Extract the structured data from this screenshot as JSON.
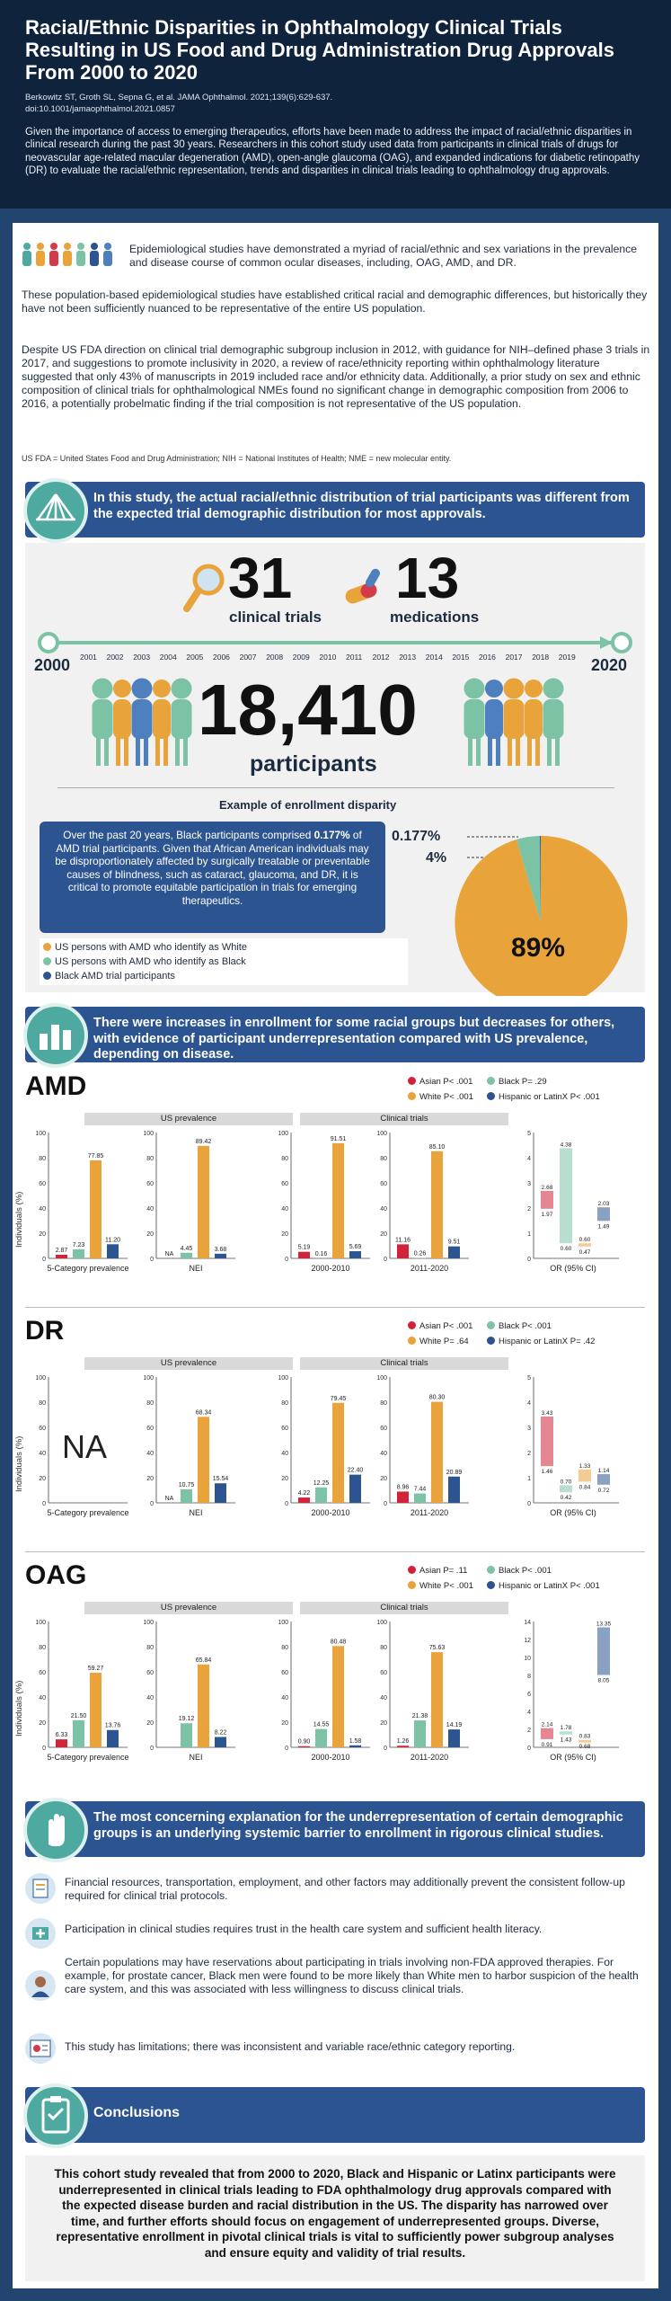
{
  "header": {
    "title": "Racial/Ethnic Disparities in Ophthalmology Clinical Trials Resulting in US Food and Drug Administration Drug Approvals From 2000 to 2020",
    "citation": "Berkowitz ST, Groth SL, Sepna G, et al. JAMA Ophthalmol. 2021;139(6):629-637.",
    "doi": "doi:10.1001/jamaophthalmol.2021.0857",
    "intro": "Given the importance of access to emerging therapeutics, efforts have been made to address the impact of racial/ethnic disparities in clinical research during the past 30 years. Researchers in this cohort study used data from participants in clinical trials of drugs for neovascular age-related macular degeneration (AMD), open-angle glaucoma (OAG), and expanded indications for diabetic retinopathy (DR) to evaluate the racial/ethnic representation, trends and disparities in clinical trials leading to ophthalmology drug approvals."
  },
  "background": {
    "p1": "Epidemiological studies have demonstrated a myriad of racial/ethnic and sex variations in the prevalence and disease course of common ocular diseases, including, OAG, AMD, and DR.",
    "p2": "These population-based epidemiological studies have established critical racial and demographic differences, but historically they have not been sufficiently nuanced to be representative of the entire US population.",
    "p3": "Despite US FDA direction on clinical trial demographic subgroup inclusion in 2012, with guidance for NIH–defined phase 3 trials in 2017, and suggestions to promote inclusivity in 2020, a review of race/ethnicity reporting within ophthalmology literature suggested that only 43% of manuscripts in 2019 included race and/or ethnicity data. Additionally, a prior study on sex and ethnic composition of clinical trials for ophthalmological NMEs found no significant change in demographic composition from 2006 to 2016, a potentially probelmatic finding if the trial composition is not representative of the US population.",
    "abbrev": "US FDA = United States Food and Drug Administration; NIH = National Institutes of Health; NME = new molecular entity."
  },
  "finding1": {
    "banner": "In this study, the actual racial/ethnic distribution of trial participants was different from the expected trial demographic distribution for most approvals.",
    "trials_num": "31",
    "trials_label": "clinical trials",
    "meds_num": "13",
    "meds_label": "medications",
    "start_year": "2000",
    "end_year": "2020",
    "years": [
      "2001",
      "2002",
      "2003",
      "2004",
      "2005",
      "2006",
      "2007",
      "2008",
      "2009",
      "2010",
      "2011",
      "2012",
      "2013",
      "2014",
      "2015",
      "2016",
      "2017",
      "2018",
      "2019"
    ],
    "participants_num": "18,410",
    "participants_label": "participants"
  },
  "enrollment": {
    "heading": "Example of enrollment disparity",
    "callout_pre": "Over the past 20 years, Black participants comprised ",
    "callout_bold": "0.177%",
    "callout_post": " of AMD trial participants. Given that African American individuals may be disproportionately affected by surgically treatable or preventable causes of blindness, such as cataract, glaucoma, and DR, it is critical to promote equitable participation in trials for emerging therapeutics.",
    "label_small": "0.177%",
    "label_4": "4%",
    "label_89": "89%",
    "legend": [
      "US persons with AMD who identify as White",
      "US persons with AMD who identify as Black",
      "Black AMD trial participants"
    ],
    "colors": {
      "white": "#e8a33a",
      "black": "#7cc3a6",
      "trial": "#2c5490"
    }
  },
  "finding2": {
    "banner": "There were increases in enrollment for some racial groups but decreases for others, with evidence of participant underrepresentation compared with US prevalence, depending on disease."
  },
  "panels": [
    {
      "name": "AMD",
      "legend": [
        "Asian P< .001",
        "Black P= .29",
        "White P< .001",
        "Hispanic or LatinX P< .001"
      ],
      "bars": [
        [
          "2.87",
          "7.23",
          "77.85",
          "11.20"
        ],
        [
          "NA",
          "4.45",
          "89.42",
          "3.68"
        ],
        [
          "5.19",
          "0.16",
          "91.51",
          "5.69"
        ],
        [
          "11.16",
          "0.26",
          "85.10",
          "9.51"
        ]
      ],
      "or": [
        "2.68",
        "1.97",
        "4.38",
        "0.60",
        "0.60",
        "0.47",
        "2.03",
        "1.49"
      ]
    },
    {
      "name": "DR",
      "legend": [
        "Asian P< .001",
        "Black P< .001",
        "White P= .64",
        "Hispanic or LatinX P= .42"
      ],
      "na": "NA",
      "bars": [
        [
          "",
          "",
          "",
          ""
        ],
        [
          "NA",
          "10.75",
          "68.34",
          "15.54"
        ],
        [
          "4.22",
          "12.25",
          "79.45",
          "22.40"
        ],
        [
          "8.96",
          "7.44",
          "80.30",
          "20.89"
        ]
      ],
      "or": [
        "3.43",
        "1.46",
        "0.70",
        "0.42",
        "1.33",
        "0.84",
        "1.14",
        "0.72"
      ]
    },
    {
      "name": "OAG",
      "legend": [
        "Asian P= .11",
        "Black P< .001",
        "White P< .001",
        "Hispanic or LatinX P< .001"
      ],
      "bars": [
        [
          "6.33",
          "21.50",
          "59.27",
          "13.76"
        ],
        [
          "",
          "19.12",
          "65.84",
          "8.22"
        ],
        [
          "0.90",
          "14.55",
          "80.48",
          "1.58"
        ],
        [
          "1.26",
          "21.38",
          "75.63",
          "14.19"
        ]
      ],
      "or": [
        "2.14",
        "0.91",
        "1.78",
        "1.43",
        "0.83",
        "0.68",
        "13.35",
        "8.05"
      ]
    }
  ],
  "chart_labels": {
    "us_prevalence": "US prevalence",
    "clinical_trials": "Clinical trials",
    "ylabel": "Individuals (%)",
    "x": [
      "5-Category prevalence",
      "NEI",
      "2000-2010",
      "2011-2020",
      "OR (95% CI)"
    ]
  },
  "finding3": {
    "banner": "The most concerning explanation for the underrepresentation of certain demographic groups is an underlying systemic barrier to enrollment in rigorous clinical studies.",
    "b1": "Financial resources, transportation, employment, and other factors may additionally prevent the consistent follow-up required for clinical trial protocols.",
    "b2": "Participation in clinical studies requires trust in the health care system and sufficient health literacy.",
    "b3": "Certain populations may have reservations about participating in trials involving non-FDA approved therapies. For example, for prostate cancer, Black men were found to be more likely than White men to harbor suspicion of the health care system, and this was associated with less willingness to discuss clinical trials.",
    "b4": "This study has limitations; there was inconsistent and variable race/ethnic category reporting."
  },
  "conclusions": {
    "banner": "Conclusions",
    "text": "This cohort study revealed that from 2000 to 2020, Black and Hispanic or Latinx participants were underrepresented in clinical trials leading to FDA ophthalmology drug approvals compared with the expected disease burden and racial distribution in the US. The disparity has narrowed over time, and further efforts should focus on engagement of underrepresented groups. Diverse, representative enrollment in pivotal clinical trials is vital to sufficiently power subgroup analyses and ensure equity and validity of trial results."
  }
}
